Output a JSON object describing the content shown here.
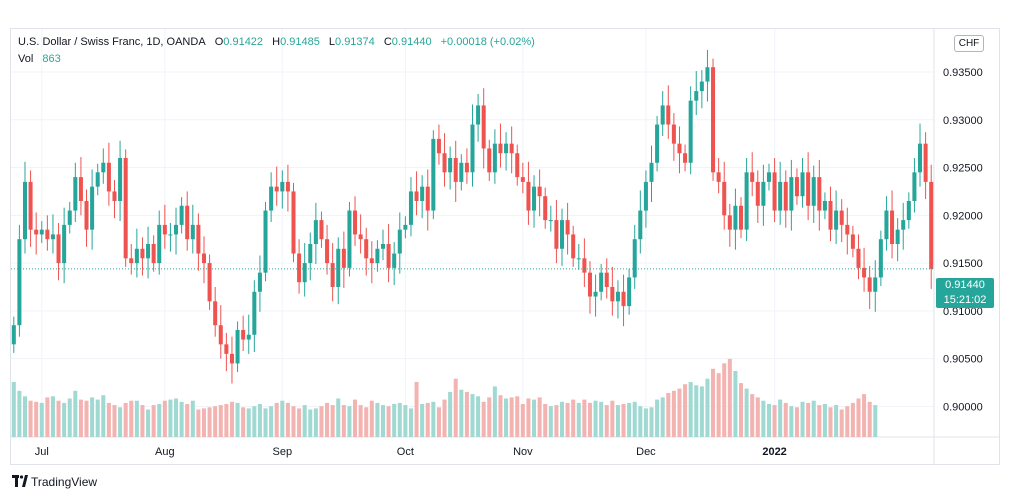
{
  "header": {
    "symbol": "U.S. Dollar / Swiss Franc, 1D, OANDA",
    "o_label": "O",
    "o_value": "0.91422",
    "h_label": "H",
    "h_value": "0.91485",
    "l_label": "L",
    "l_value": "0.91374",
    "c_label": "C",
    "c_value": "0.91440",
    "change": "+0.00018 (+0.02%)",
    "vol_label": "Vol",
    "vol_value": "863"
  },
  "axis": {
    "currency": "CHF",
    "last_price": "0.91440",
    "countdown": "15:21:02"
  },
  "brand": "TradingView",
  "colors": {
    "up": "#26a69a",
    "down": "#ef5350",
    "up_volume": "#9fd9d2",
    "down_volume": "#f3b3b1",
    "grid": "#f0f3fa",
    "text": "#131722"
  },
  "chart_data": {
    "type": "candlestick",
    "y_range": [
      0.8968,
      0.9395
    ],
    "y_ticks": [
      "0.90000",
      "0.90500",
      "0.91000",
      "0.91500",
      "0.92000",
      "0.92500",
      "0.93000",
      "0.93500"
    ],
    "x_ticks": [
      {
        "label": "Jul",
        "index": 5
      },
      {
        "label": "Aug",
        "index": 27
      },
      {
        "label": "Sep",
        "index": 48
      },
      {
        "label": "Oct",
        "index": 70
      },
      {
        "label": "Nov",
        "index": 91
      },
      {
        "label": "Dec",
        "index": 113
      },
      {
        "label": "2022",
        "index": 136
      }
    ],
    "last_price": 0.9144,
    "closes": [
      0.9085,
      0.9175,
      0.9235,
      0.9185,
      0.918,
      0.9185,
      0.9175,
      0.918,
      0.915,
      0.919,
      0.9205,
      0.924,
      0.9215,
      0.9185,
      0.923,
      0.9245,
      0.9255,
      0.9225,
      0.9215,
      0.926,
      0.9155,
      0.915,
      0.9165,
      0.9155,
      0.917,
      0.915,
      0.919,
      0.918,
      0.918,
      0.919,
      0.921,
      0.9175,
      0.919,
      0.916,
      0.915,
      0.911,
      0.9085,
      0.9065,
      0.9055,
      0.9045,
      0.908,
      0.907,
      0.9075,
      0.912,
      0.914,
      0.9205,
      0.923,
      0.9225,
      0.9235,
      0.9225,
      0.916,
      0.913,
      0.915,
      0.917,
      0.9195,
      0.9175,
      0.915,
      0.9125,
      0.9165,
      0.9145,
      0.9205,
      0.918,
      0.9175,
      0.9155,
      0.915,
      0.9165,
      0.917,
      0.9145,
      0.916,
      0.9185,
      0.919,
      0.9225,
      0.9215,
      0.923,
      0.9205,
      0.928,
      0.9265,
      0.9245,
      0.926,
      0.9235,
      0.9255,
      0.9245,
      0.9295,
      0.9315,
      0.927,
      0.9245,
      0.9275,
      0.9265,
      0.9275,
      0.9265,
      0.924,
      0.9235,
      0.9205,
      0.923,
      0.922,
      0.9195,
      0.9195,
      0.9165,
      0.9195,
      0.918,
      0.9155,
      0.9155,
      0.914,
      0.9115,
      0.912,
      0.914,
      0.9125,
      0.911,
      0.912,
      0.9105,
      0.9135,
      0.9175,
      0.9205,
      0.9235,
      0.9255,
      0.9295,
      0.9315,
      0.9295,
      0.9275,
      0.9265,
      0.9255,
      0.932,
      0.933,
      0.934,
      0.9355,
      0.9245,
      0.9235,
      0.92,
      0.9185,
      0.921,
      0.9185,
      0.9245,
      0.9235,
      0.921,
      0.9235,
      0.9245,
      0.9205,
      0.9235,
      0.9205,
      0.924,
      0.922,
      0.9245,
      0.921,
      0.924,
      0.9205,
      0.9215,
      0.9185,
      0.9205,
      0.919,
      0.918,
      0.9165,
      0.9145,
      0.9135,
      0.912,
      0.9135,
      0.9175,
      0.9205,
      0.917,
      0.9185,
      0.9195,
      0.9215,
      0.9245,
      0.9275,
      0.9235,
      0.9144
    ],
    "volumes": [
      0.5,
      0.42,
      0.37,
      0.33,
      0.32,
      0.31,
      0.36,
      0.37,
      0.33,
      0.31,
      0.35,
      0.42,
      0.34,
      0.33,
      0.36,
      0.34,
      0.38,
      0.31,
      0.29,
      0.27,
      0.31,
      0.33,
      0.33,
      0.29,
      0.25,
      0.29,
      0.3,
      0.33,
      0.34,
      0.35,
      0.32,
      0.3,
      0.33,
      0.25,
      0.26,
      0.27,
      0.28,
      0.29,
      0.3,
      0.32,
      0.31,
      0.27,
      0.26,
      0.28,
      0.3,
      0.26,
      0.28,
      0.31,
      0.33,
      0.31,
      0.28,
      0.26,
      0.29,
      0.25,
      0.26,
      0.28,
      0.31,
      0.29,
      0.35,
      0.29,
      0.28,
      0.34,
      0.29,
      0.27,
      0.33,
      0.31,
      0.29,
      0.28,
      0.3,
      0.31,
      0.29,
      0.26,
      0.5,
      0.3,
      0.31,
      0.32,
      0.27,
      0.34,
      0.41,
      0.53,
      0.43,
      0.41,
      0.39,
      0.37,
      0.32,
      0.36,
      0.46,
      0.38,
      0.35,
      0.36,
      0.37,
      0.3,
      0.35,
      0.34,
      0.36,
      0.3,
      0.28,
      0.29,
      0.32,
      0.31,
      0.34,
      0.31,
      0.34,
      0.31,
      0.33,
      0.32,
      0.29,
      0.33,
      0.29,
      0.3,
      0.31,
      0.32,
      0.28,
      0.26,
      0.27,
      0.34,
      0.36,
      0.4,
      0.42,
      0.44,
      0.48,
      0.5,
      0.47,
      0.46,
      0.53,
      0.62,
      0.58,
      0.67,
      0.71,
      0.6,
      0.49,
      0.44,
      0.39,
      0.36,
      0.33,
      0.3,
      0.29,
      0.34,
      0.31,
      0.28,
      0.27,
      0.32,
      0.31,
      0.33,
      0.29,
      0.3,
      0.27,
      0.29,
      0.25,
      0.28,
      0.31,
      0.35,
      0.39,
      0.32,
      0.29
    ]
  }
}
